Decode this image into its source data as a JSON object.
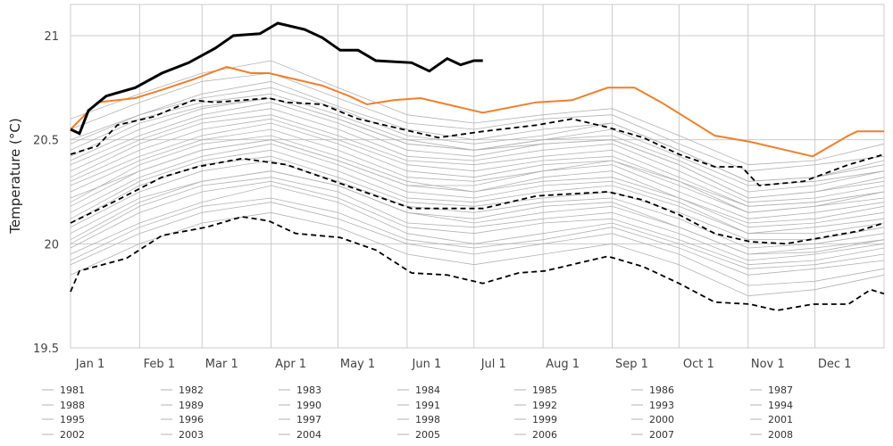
{
  "chart_data": {
    "type": "line",
    "title": "",
    "xlabel": "",
    "ylabel": "Temperature (°C)",
    "ylim": [
      19.5,
      21.15
    ],
    "xlim": [
      0,
      365
    ],
    "grid": true,
    "legend_placement": "bottom",
    "y_ticks": [
      "19.5",
      "20",
      "20.5",
      "21"
    ],
    "y_tick_values": [
      19.5,
      20,
      20.5,
      21
    ],
    "x_ticks": [
      "Jan 1",
      "Feb 1",
      "Mar 1",
      "Apr 1",
      "May 1",
      "Jun 1",
      "Jul 1",
      "Aug 1",
      "Sep 1",
      "Oct 1",
      "Nov 1",
      "Dec 1"
    ],
    "x_tick_days": [
      0,
      31,
      59,
      90,
      120,
      151,
      181,
      212,
      243,
      273,
      304,
      334
    ],
    "colors": {
      "years": "#b3b3b3",
      "highlight": "#f07f2a",
      "current": "#000000",
      "stats": "#000000",
      "grid": "#cccccc"
    },
    "series_days": [
      0,
      31,
      59,
      90,
      120,
      151,
      181,
      212,
      243,
      273,
      304,
      334,
      365
    ],
    "series": [
      {
        "name": "1981",
        "values": [
          20.05,
          20.22,
          20.3,
          20.35,
          20.28,
          20.15,
          20.12,
          20.18,
          20.2,
          20.08,
          19.95,
          19.98,
          20.02
        ]
      },
      {
        "name": "1982",
        "values": [
          19.95,
          20.1,
          20.2,
          20.28,
          20.2,
          20.05,
          20.0,
          20.05,
          20.1,
          20.0,
          19.88,
          19.9,
          19.95
        ]
      },
      {
        "name": "1983",
        "values": [
          20.3,
          20.45,
          20.55,
          20.6,
          20.5,
          20.38,
          20.35,
          20.4,
          20.42,
          20.3,
          20.15,
          20.18,
          20.25
        ]
      },
      {
        "name": "1984",
        "values": [
          20.12,
          20.3,
          20.4,
          20.45,
          20.35,
          20.22,
          20.2,
          20.25,
          20.28,
          20.18,
          20.05,
          20.05,
          20.1
        ]
      },
      {
        "name": "1985",
        "values": [
          19.9,
          20.05,
          20.15,
          20.2,
          20.12,
          20.0,
          19.95,
          20.0,
          20.05,
          19.95,
          19.8,
          19.82,
          19.88
        ]
      },
      {
        "name": "1986",
        "values": [
          20.2,
          20.38,
          20.48,
          20.52,
          20.42,
          20.3,
          20.25,
          20.32,
          20.35,
          20.22,
          20.1,
          20.12,
          20.18
        ]
      },
      {
        "name": "1987",
        "values": [
          20.4,
          20.55,
          20.65,
          20.7,
          20.6,
          20.48,
          20.45,
          20.5,
          20.52,
          20.4,
          20.25,
          20.28,
          20.35
        ]
      },
      {
        "name": "1988",
        "values": [
          20.0,
          20.18,
          20.28,
          20.32,
          20.25,
          20.1,
          20.08,
          20.12,
          20.15,
          20.05,
          19.92,
          19.95,
          20.0
        ]
      },
      {
        "name": "1989",
        "values": [
          19.85,
          20.0,
          20.1,
          20.15,
          20.08,
          19.95,
          19.9,
          19.95,
          20.0,
          19.9,
          19.75,
          19.78,
          19.85
        ]
      },
      {
        "name": "1990",
        "values": [
          20.25,
          20.4,
          20.5,
          20.55,
          20.45,
          20.32,
          20.3,
          20.35,
          20.38,
          20.25,
          20.12,
          20.15,
          20.2
        ]
      },
      {
        "name": "1991",
        "values": [
          20.15,
          20.32,
          20.42,
          20.48,
          20.38,
          20.25,
          20.22,
          20.28,
          20.3,
          20.2,
          20.05,
          20.08,
          20.12
        ]
      },
      {
        "name": "1992",
        "values": [
          20.08,
          20.25,
          20.35,
          20.4,
          20.3,
          20.18,
          20.15,
          20.2,
          20.22,
          20.12,
          19.98,
          20.0,
          20.05
        ]
      },
      {
        "name": "1993",
        "values": [
          19.98,
          20.15,
          20.25,
          20.3,
          20.22,
          20.08,
          20.05,
          20.1,
          20.12,
          20.02,
          19.9,
          19.92,
          19.98
        ]
      },
      {
        "name": "1994",
        "values": [
          20.35,
          20.5,
          20.6,
          20.65,
          20.55,
          20.42,
          20.4,
          20.45,
          20.48,
          20.35,
          20.2,
          20.22,
          20.28
        ]
      },
      {
        "name": "1995",
        "values": [
          20.1,
          20.28,
          20.38,
          20.42,
          20.32,
          20.2,
          20.18,
          20.22,
          20.25,
          20.15,
          20.02,
          20.02,
          20.08
        ]
      },
      {
        "name": "1996",
        "values": [
          19.92,
          20.08,
          20.18,
          20.22,
          20.15,
          20.02,
          19.98,
          20.02,
          20.08,
          19.98,
          19.85,
          19.88,
          19.92
        ]
      },
      {
        "name": "1997",
        "values": [
          20.22,
          20.35,
          20.45,
          20.5,
          20.4,
          20.28,
          20.28,
          20.35,
          20.4,
          20.3,
          20.18,
          20.2,
          20.25
        ]
      },
      {
        "name": "1998",
        "values": [
          20.45,
          20.6,
          20.68,
          20.72,
          20.62,
          20.5,
          20.45,
          20.48,
          20.5,
          20.38,
          20.22,
          20.25,
          20.3
        ]
      },
      {
        "name": "1999",
        "values": [
          20.02,
          20.2,
          20.3,
          20.35,
          20.28,
          20.15,
          20.1,
          20.15,
          20.18,
          20.08,
          19.95,
          19.96,
          20.02
        ]
      },
      {
        "name": "2000",
        "values": [
          20.18,
          20.35,
          20.45,
          20.5,
          20.4,
          20.28,
          20.25,
          20.3,
          20.32,
          20.22,
          20.08,
          20.1,
          20.15
        ]
      },
      {
        "name": "2001",
        "values": [
          20.28,
          20.42,
          20.52,
          20.58,
          20.48,
          20.35,
          20.32,
          20.38,
          20.4,
          20.28,
          20.15,
          20.18,
          20.22
        ]
      },
      {
        "name": "2002",
        "values": [
          20.5,
          20.62,
          20.72,
          20.78,
          20.66,
          20.55,
          20.5,
          20.55,
          20.58,
          20.45,
          20.3,
          20.32,
          20.38
        ]
      },
      {
        "name": "2003",
        "values": [
          20.32,
          20.48,
          20.58,
          20.62,
          20.52,
          20.4,
          20.38,
          20.42,
          20.45,
          20.32,
          20.18,
          20.2,
          20.25
        ]
      },
      {
        "name": "2004",
        "values": [
          20.38,
          20.52,
          20.62,
          20.68,
          20.58,
          20.45,
          20.42,
          20.48,
          20.5,
          20.38,
          20.22,
          20.25,
          20.32
        ]
      },
      {
        "name": "2005",
        "values": [
          20.55,
          20.68,
          20.78,
          20.82,
          20.7,
          20.58,
          20.55,
          20.6,
          20.62,
          20.48,
          20.35,
          20.38,
          20.42
        ]
      },
      {
        "name": "2006",
        "values": [
          20.42,
          20.58,
          20.66,
          20.7,
          20.6,
          20.48,
          20.45,
          20.5,
          20.55,
          20.42,
          20.28,
          20.3,
          20.35
        ]
      },
      {
        "name": "2007",
        "values": [
          20.6,
          20.72,
          20.82,
          20.88,
          20.75,
          20.62,
          20.58,
          20.62,
          20.65,
          20.52,
          20.38,
          20.4,
          20.48
        ]
      },
      {
        "name": "2008",
        "values": [
          20.48,
          20.62,
          20.7,
          20.75,
          20.65,
          20.52,
          20.48,
          20.52,
          20.58,
          20.45,
          20.3,
          20.32,
          20.4
        ]
      }
    ],
    "highlight": {
      "x": [
        0,
        12,
        29,
        41,
        55,
        70,
        81,
        89,
        101,
        113,
        125,
        133,
        145,
        157,
        177,
        185,
        209,
        225,
        241,
        253,
        265,
        277,
        289,
        305,
        321,
        333,
        349,
        353,
        365
      ],
      "values": [
        20.55,
        20.68,
        20.7,
        20.74,
        20.79,
        20.85,
        20.82,
        20.82,
        20.79,
        20.76,
        20.71,
        20.67,
        20.69,
        20.7,
        20.65,
        20.63,
        20.68,
        20.69,
        20.75,
        20.75,
        20.68,
        20.6,
        20.52,
        20.49,
        20.45,
        20.42,
        20.52,
        20.54,
        20.54
      ]
    },
    "current": {
      "x": [
        0,
        4,
        8,
        16,
        29,
        41,
        53,
        65,
        73,
        85,
        93,
        105,
        113,
        121,
        129,
        137,
        153,
        161,
        169,
        175,
        181,
        185
      ],
      "values": [
        20.55,
        20.53,
        20.64,
        20.71,
        20.75,
        20.82,
        20.87,
        20.94,
        21.0,
        21.01,
        21.06,
        21.03,
        20.99,
        20.93,
        20.93,
        20.88,
        20.87,
        20.83,
        20.89,
        20.86,
        20.88,
        20.88
      ]
    },
    "stats": [
      {
        "name": "upper",
        "x": [
          0,
          12,
          21,
          37,
          55,
          65,
          89,
          97,
          113,
          129,
          149,
          165,
          185,
          209,
          225,
          241,
          257,
          273,
          289,
          301,
          309,
          329,
          349,
          365
        ],
        "values": [
          20.43,
          20.47,
          20.57,
          20.61,
          20.69,
          20.68,
          20.7,
          20.68,
          20.67,
          20.6,
          20.55,
          20.51,
          20.54,
          20.57,
          20.6,
          20.56,
          20.51,
          20.43,
          20.37,
          20.37,
          20.28,
          20.3,
          20.38,
          20.43
        ]
      },
      {
        "name": "mean",
        "x": [
          0,
          21,
          41,
          57,
          77,
          97,
          121,
          137,
          153,
          185,
          209,
          225,
          241,
          257,
          273,
          289,
          305,
          321,
          337,
          353,
          365
        ],
        "values": [
          20.1,
          20.21,
          20.32,
          20.37,
          20.41,
          20.38,
          20.29,
          20.23,
          20.17,
          20.17,
          20.23,
          20.24,
          20.25,
          20.21,
          20.14,
          20.05,
          20.01,
          20.0,
          20.03,
          20.06,
          20.1
        ]
      },
      {
        "name": "lower",
        "x": [
          0,
          4,
          25,
          41,
          61,
          77,
          89,
          101,
          121,
          137,
          153,
          169,
          185,
          201,
          213,
          241,
          257,
          273,
          289,
          305,
          317,
          333,
          349,
          359,
          365
        ],
        "values": [
          19.77,
          19.87,
          19.93,
          20.04,
          20.08,
          20.13,
          20.11,
          20.05,
          20.03,
          19.97,
          19.86,
          19.85,
          19.81,
          19.86,
          19.87,
          19.94,
          19.89,
          19.81,
          19.72,
          19.71,
          19.68,
          19.71,
          19.71,
          19.78,
          19.76
        ]
      }
    ]
  }
}
